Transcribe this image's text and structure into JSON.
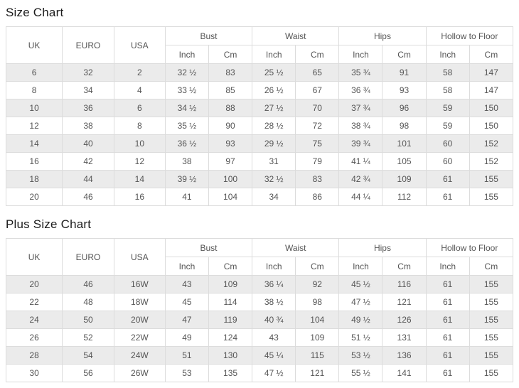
{
  "colors": {
    "stripe": "#ebebeb",
    "border": "#dcdcdc",
    "text": "#555555"
  },
  "tables": [
    {
      "title": "Size Chart",
      "simple_cols": [
        "UK",
        "EURO",
        "USA"
      ],
      "groups": [
        "Bust",
        "Waist",
        "Hips",
        "Hollow to Floor"
      ],
      "sub_cols": [
        "Inch",
        "Cm"
      ],
      "rows": [
        [
          "6",
          "32",
          "2",
          "32 ½",
          "83",
          "25 ½",
          "65",
          "35 ¾",
          "91",
          "58",
          "147"
        ],
        [
          "8",
          "34",
          "4",
          "33 ½",
          "85",
          "26 ½",
          "67",
          "36 ¾",
          "93",
          "58",
          "147"
        ],
        [
          "10",
          "36",
          "6",
          "34 ½",
          "88",
          "27 ½",
          "70",
          "37 ¾",
          "96",
          "59",
          "150"
        ],
        [
          "12",
          "38",
          "8",
          "35 ½",
          "90",
          "28 ½",
          "72",
          "38 ¾",
          "98",
          "59",
          "150"
        ],
        [
          "14",
          "40",
          "10",
          "36 ½",
          "93",
          "29 ½",
          "75",
          "39 ¾",
          "101",
          "60",
          "152"
        ],
        [
          "16",
          "42",
          "12",
          "38",
          "97",
          "31",
          "79",
          "41 ¼",
          "105",
          "60",
          "152"
        ],
        [
          "18",
          "44",
          "14",
          "39 ½",
          "100",
          "32 ½",
          "83",
          "42 ¾",
          "109",
          "61",
          "155"
        ],
        [
          "20",
          "46",
          "16",
          "41",
          "104",
          "34",
          "86",
          "44 ¼",
          "112",
          "61",
          "155"
        ]
      ]
    },
    {
      "title": "Plus Size Chart",
      "simple_cols": [
        "UK",
        "EURO",
        "USA"
      ],
      "groups": [
        "Bust",
        "Waist",
        "Hips",
        "Hollow to Floor"
      ],
      "sub_cols": [
        "Inch",
        "Cm"
      ],
      "rows": [
        [
          "20",
          "46",
          "16W",
          "43",
          "109",
          "36 ¼",
          "92",
          "45 ½",
          "116",
          "61",
          "155"
        ],
        [
          "22",
          "48",
          "18W",
          "45",
          "114",
          "38 ½",
          "98",
          "47 ½",
          "121",
          "61",
          "155"
        ],
        [
          "24",
          "50",
          "20W",
          "47",
          "119",
          "40 ¾",
          "104",
          "49 ½",
          "126",
          "61",
          "155"
        ],
        [
          "26",
          "52",
          "22W",
          "49",
          "124",
          "43",
          "109",
          "51 ½",
          "131",
          "61",
          "155"
        ],
        [
          "28",
          "54",
          "24W",
          "51",
          "130",
          "45 ¼",
          "115",
          "53 ½",
          "136",
          "61",
          "155"
        ],
        [
          "30",
          "56",
          "26W",
          "53",
          "135",
          "47 ½",
          "121",
          "55 ½",
          "141",
          "61",
          "155"
        ]
      ]
    }
  ]
}
